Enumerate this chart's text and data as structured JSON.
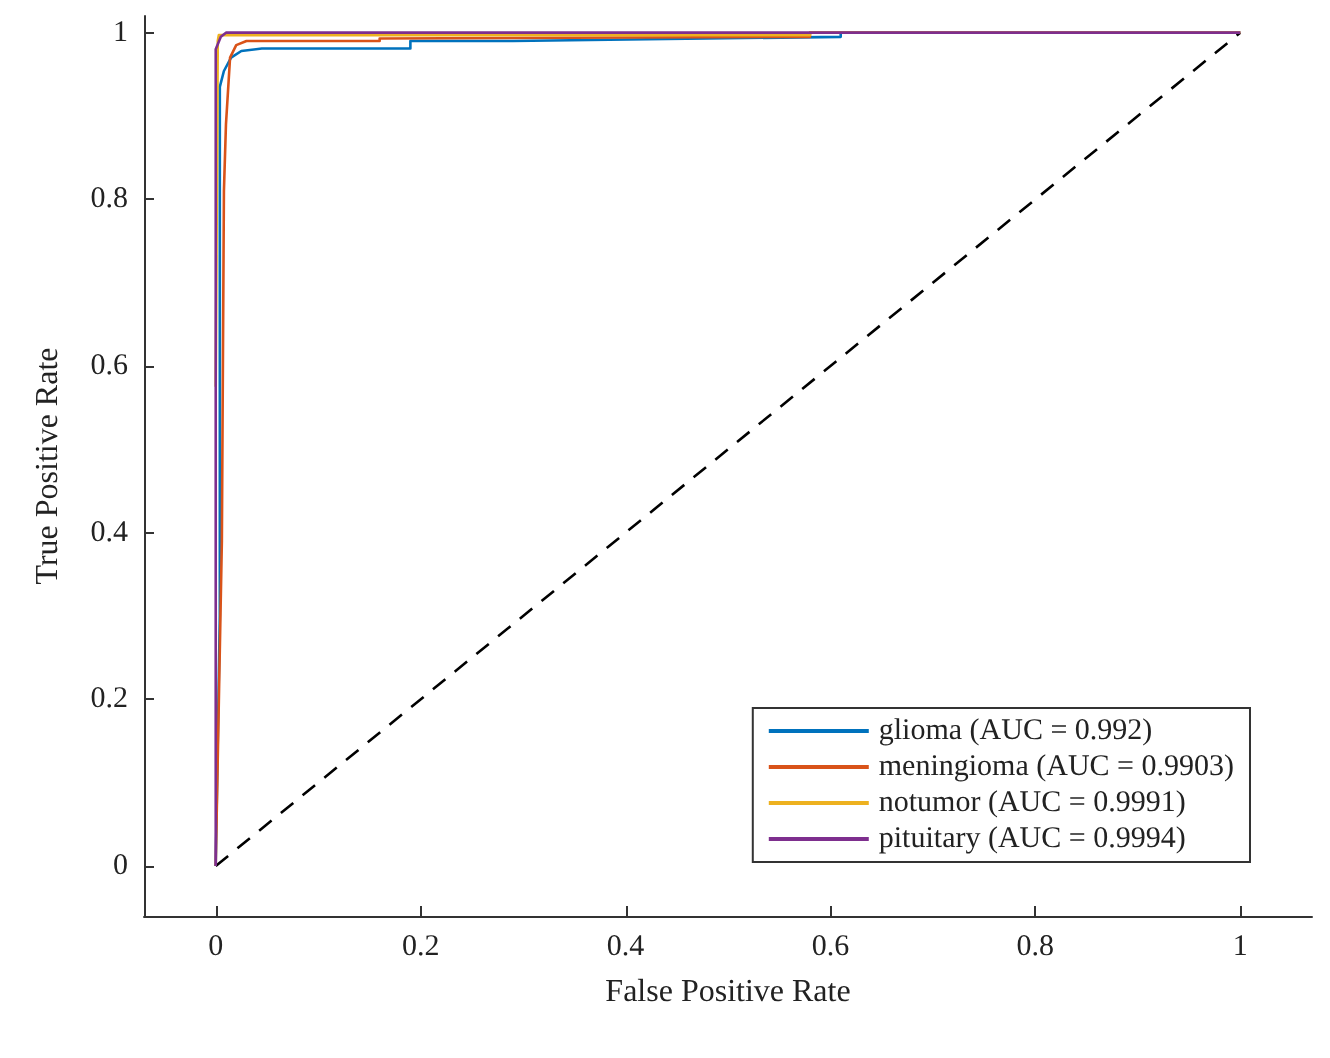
{
  "chart_data": {
    "type": "line",
    "xlabel": "False Positive Rate",
    "ylabel": "True Positive Rate",
    "xlim": [
      -0.07,
      1.07
    ],
    "ylim": [
      -0.06,
      1.02
    ],
    "xticks": [
      0,
      0.2,
      0.4,
      0.6,
      0.8,
      1
    ],
    "yticks": [
      0,
      0.2,
      0.4,
      0.6,
      0.8,
      1
    ],
    "grid": false,
    "legend": "bottom right",
    "marker": "none",
    "series": [
      {
        "name": "glioma (AUC = 0.992)",
        "color": "#0072bd",
        "x": [
          0,
          0.004,
          0.004,
          0.008,
          0.015,
          0.025,
          0.045,
          0.19,
          0.19,
          0.29,
          0.61,
          0.61,
          1
        ],
        "values": [
          0,
          0.3,
          0.935,
          0.954,
          0.97,
          0.978,
          0.981,
          0.981,
          0.99,
          0.99,
          0.995,
          1,
          1
        ]
      },
      {
        "name": "meningioma (AUC = 0.9903)",
        "color": "#d95319",
        "x": [
          0,
          0.004,
          0.006,
          0.008,
          0.01,
          0.014,
          0.02,
          0.03,
          0.16,
          0.16,
          0.58,
          0.58,
          1
        ],
        "values": [
          0,
          0.26,
          0.39,
          0.81,
          0.89,
          0.97,
          0.985,
          0.99,
          0.99,
          0.993,
          0.995,
          1,
          1
        ]
      },
      {
        "name": "notumor (AUC = 0.9991)",
        "color": "#edb120",
        "x": [
          0,
          0.002,
          0.003,
          0.58,
          0.58,
          1
        ],
        "values": [
          0.575,
          0.99,
          0.997,
          0.997,
          1,
          1
        ]
      },
      {
        "name": "pituitary (AUC = 0.9994)",
        "color": "#7e2f8e",
        "x": [
          0,
          0,
          0.005,
          0.01,
          1
        ],
        "values": [
          0,
          0.98,
          0.995,
          1,
          1
        ]
      },
      {
        "type": "line",
        "line_style": "dashed",
        "color": "#000000",
        "x": [
          0,
          1
        ],
        "values": [
          0,
          1
        ]
      }
    ]
  }
}
